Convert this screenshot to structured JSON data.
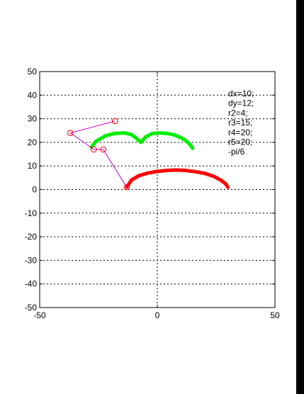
{
  "chart_data": {
    "type": "line",
    "xlim": [
      -50,
      50
    ],
    "ylim": [
      -50,
      50
    ],
    "x_ticks": [
      "-50",
      "0",
      "50"
    ],
    "y_ticks": [
      "50",
      "40",
      "30",
      "20",
      "10",
      "0",
      "-10",
      "-20",
      "-30",
      "-40",
      "-50"
    ],
    "grid": "dashed at x=0 and every 10 on y",
    "annotations": [
      "dx=10;",
      "dy=12;",
      "r2=4;",
      "r3=15;",
      "r4=20;",
      "r5=20;",
      "-pi/6"
    ],
    "colors": {
      "red": "#ff0000",
      "green": "#00ee00",
      "linkage": "#cc00cc"
    },
    "series": [
      {
        "color": "red",
        "style": "thick-arc",
        "x": [
          -13,
          -11,
          -8,
          -4,
          0,
          4,
          8,
          12,
          16,
          20,
          24,
          27,
          29,
          30
        ],
        "y": [
          1,
          4,
          5.8,
          7,
          7.7,
          8.1,
          8.3,
          8.1,
          7.6,
          6.9,
          5.6,
          4,
          2.5,
          1
        ]
      },
      {
        "color": "green",
        "style": "thick-arc",
        "x": [
          -28,
          -26,
          -22,
          -18,
          -14,
          -11,
          -9,
          -7,
          -5,
          -2,
          1,
          4,
          7,
          10,
          12,
          14,
          15
        ],
        "y": [
          18,
          20.5,
          22.8,
          23.8,
          24,
          23.3,
          21.8,
          20,
          22.3,
          23.8,
          24,
          23.8,
          23.2,
          22,
          20.8,
          19,
          17.5
        ]
      },
      {
        "color": "linkage",
        "style": "thin-line-circles",
        "x": [
          -13,
          -23,
          -27,
          -37,
          -18
        ],
        "y": [
          1,
          17,
          17,
          24,
          29
        ]
      }
    ]
  }
}
